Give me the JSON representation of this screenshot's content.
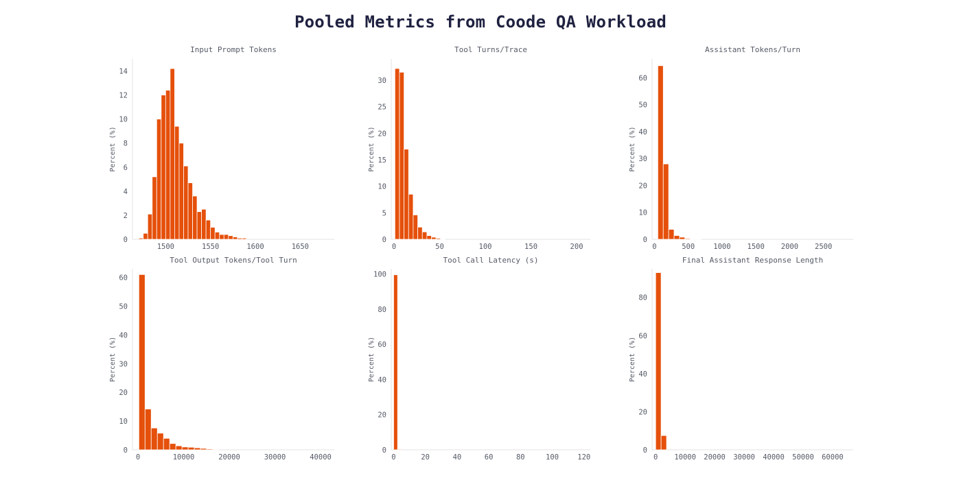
{
  "title": "Pooled Metrics from Coode QA Workload",
  "colors": {
    "bar": "#e5500b",
    "text": "#555a66",
    "title": "#1f2140"
  },
  "chart_data": [
    {
      "type": "bar",
      "title": "Input Prompt Tokens",
      "ylabel": "Percent (%)",
      "xlabel": "",
      "xlim": [
        1463,
        1688
      ],
      "ylim": [
        0,
        15
      ],
      "xticks": [
        1500,
        1550,
        1600,
        1650
      ],
      "yticks": [
        0,
        2,
        4,
        6,
        8,
        10,
        12,
        14
      ],
      "bin_start": 1470,
      "bin_width": 5,
      "values": [
        0.1,
        0.5,
        2.1,
        5.2,
        10.0,
        12.0,
        12.4,
        14.2,
        9.4,
        8.0,
        6.1,
        4.7,
        3.6,
        2.3,
        2.5,
        1.6,
        1.0,
        0.6,
        0.4,
        0.4,
        0.3,
        0.2,
        0.1,
        0.1
      ]
    },
    {
      "type": "bar",
      "title": "Tool Turns/Trace",
      "ylabel": "Percent (%)",
      "xlabel": "",
      "xlim": [
        -3,
        215
      ],
      "ylim": [
        0,
        34
      ],
      "xticks": [
        0,
        50,
        100,
        150,
        200
      ],
      "yticks": [
        0,
        5,
        10,
        15,
        20,
        25,
        30
      ],
      "bin_start": 1,
      "bin_width": 5,
      "values": [
        32.2,
        31.5,
        17.0,
        8.5,
        4.6,
        2.3,
        1.4,
        0.7,
        0.4,
        0.2,
        0.1
      ]
    },
    {
      "type": "bar",
      "title": "Assistant Tokens/Turn",
      "ylabel": "Percent (%)",
      "xlabel": "",
      "xlim": [
        -35,
        2940
      ],
      "ylim": [
        0,
        67
      ],
      "xticks": [
        0,
        500,
        1000,
        1500,
        2000,
        2500
      ],
      "yticks": [
        0,
        10,
        20,
        30,
        40,
        50,
        60
      ],
      "bin_start": 50,
      "bin_width": 80,
      "values": [
        64.5,
        28.0,
        3.7,
        1.4,
        0.8,
        0.3,
        0.2,
        0.1
      ]
    },
    {
      "type": "bar",
      "title": "Tool Output Tokens/Tool Turn",
      "ylabel": "Percent (%)",
      "xlabel": "",
      "xlim": [
        -1200,
        43000
      ],
      "ylim": [
        0,
        63
      ],
      "xticks": [
        0,
        10000,
        20000,
        30000,
        40000
      ],
      "yticks": [
        0,
        10,
        20,
        30,
        40,
        50,
        60
      ],
      "bin_start": 200,
      "bin_width": 1350,
      "values": [
        61.0,
        14.2,
        7.6,
        5.8,
        4.0,
        2.2,
        1.4,
        1.0,
        0.9,
        0.7,
        0.5,
        0.3,
        0.2
      ]
    },
    {
      "type": "bar",
      "title": "Tool Call Latency (s)",
      "ylabel": "Percent (%)",
      "xlabel": "",
      "xlim": [
        -1.5,
        124
      ],
      "ylim": [
        0,
        103
      ],
      "xticks": [
        0,
        20,
        40,
        60,
        80,
        100,
        120
      ],
      "yticks": [
        0,
        20,
        40,
        60,
        80,
        100
      ],
      "bin_start": 0,
      "bin_width": 2.5,
      "values": [
        99.6,
        0.4
      ]
    },
    {
      "type": "bar",
      "title": "Final Assistant Response Length",
      "ylabel": "Percent (%)",
      "xlabel": "",
      "xlim": [
        -1200,
        67000
      ],
      "ylim": [
        0,
        95
      ],
      "xticks": [
        0,
        10000,
        20000,
        30000,
        40000,
        50000,
        60000
      ],
      "yticks": [
        0,
        20,
        40,
        60,
        80
      ],
      "bin_start": 0,
      "bin_width": 1850,
      "values": [
        93.0,
        7.5
      ]
    }
  ]
}
